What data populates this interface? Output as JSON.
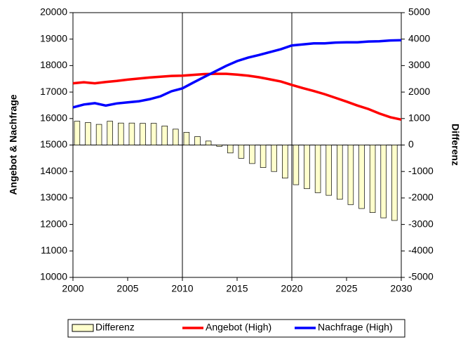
{
  "chart_data": {
    "type": "bar-line",
    "y_label": "Angebot & Nachfrage",
    "y2_label": "Differenz",
    "x": [
      2000,
      2001,
      2002,
      2003,
      2004,
      2005,
      2006,
      2007,
      2008,
      2009,
      2010,
      2011,
      2012,
      2013,
      2014,
      2015,
      2016,
      2017,
      2018,
      2019,
      2020,
      2021,
      2022,
      2023,
      2024,
      2025,
      2026,
      2027,
      2028,
      2029,
      2030
    ],
    "xlim": [
      2000,
      2030
    ],
    "xticks": [
      2000,
      2005,
      2010,
      2015,
      2020,
      2025,
      2030
    ],
    "ylim": [
      10000,
      20000
    ],
    "yticks": [
      10000,
      11000,
      12000,
      13000,
      14000,
      15000,
      16000,
      17000,
      18000,
      19000,
      20000
    ],
    "y2lim": [
      -5000,
      5000
    ],
    "y2ticks": [
      -5000,
      -4000,
      -3000,
      -2000,
      -1000,
      0,
      1000,
      2000,
      3000,
      4000,
      5000
    ],
    "series": [
      {
        "name": "Differenz",
        "type": "bar",
        "axis": "y2",
        "color": "#ffffcc",
        "values": [
          900,
          850,
          780,
          900,
          830,
          830,
          820,
          820,
          720,
          600,
          480,
          320,
          150,
          -50,
          -300,
          -500,
          -700,
          -850,
          -1000,
          -1250,
          -1500,
          -1650,
          -1800,
          -1900,
          -2050,
          -2250,
          -2400,
          -2550,
          -2750,
          -2850,
          -3000
        ]
      },
      {
        "name": "Angebot (High)",
        "type": "line",
        "color": "#ff0000",
        "values": [
          17330,
          17370,
          17330,
          17380,
          17420,
          17470,
          17510,
          17550,
          17580,
          17610,
          17620,
          17650,
          17680,
          17690,
          17690,
          17660,
          17620,
          17560,
          17480,
          17400,
          17270,
          17150,
          17040,
          16920,
          16780,
          16640,
          16490,
          16360,
          16190,
          16050,
          15960
        ]
      },
      {
        "name": "Nachfrage (High)",
        "type": "line",
        "color": "#0000ff",
        "values": [
          16420,
          16530,
          16580,
          16490,
          16570,
          16610,
          16650,
          16730,
          16840,
          17030,
          17140,
          17360,
          17570,
          17780,
          17990,
          18170,
          18300,
          18400,
          18510,
          18620,
          18760,
          18800,
          18840,
          18840,
          18870,
          18880,
          18880,
          18910,
          18920,
          18950,
          18960
        ]
      }
    ]
  }
}
